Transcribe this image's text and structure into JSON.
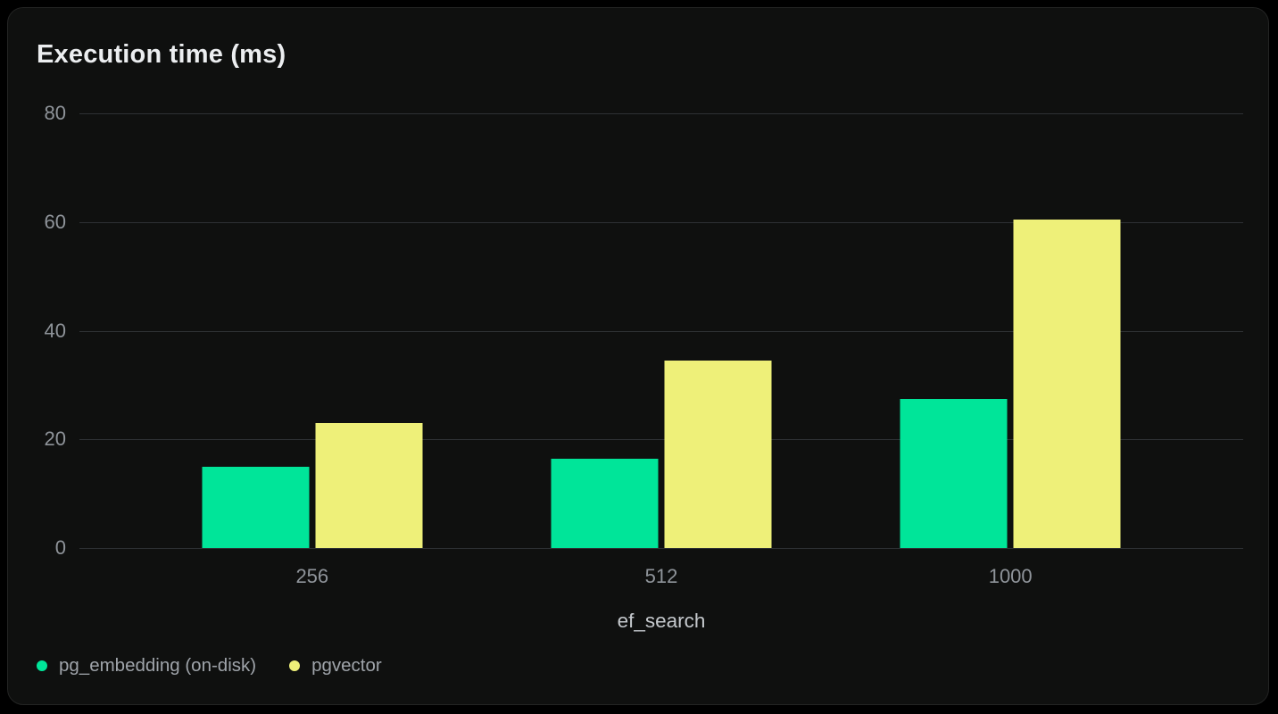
{
  "card": {
    "title": "Execution time (ms)"
  },
  "chart_data": {
    "type": "bar",
    "title": "Execution time (ms)",
    "categories": [
      "256",
      "512",
      "1000"
    ],
    "series": [
      {
        "name": "pg_embedding (on-disk)",
        "color": "#00e599",
        "values": [
          15,
          16.5,
          27.5
        ]
      },
      {
        "name": "pgvector",
        "color": "#eef079",
        "values": [
          23,
          34.5,
          60.5
        ]
      }
    ],
    "xlabel": "ef_search",
    "ylabel": "",
    "ylim": [
      0,
      80
    ],
    "yticks": [
      0,
      20,
      40,
      60,
      80
    ],
    "grid": true,
    "legend_position": "bottom-left",
    "group_centers_pct": [
      20,
      50,
      80
    ]
  },
  "colors": {
    "page_background": "#000000",
    "card_background": "#0f100f",
    "card_border": "#232423",
    "gridline": "#2e3134",
    "title_text": "#eceef0",
    "tick_text": "#8f949a",
    "axis_title_text": "#c5c9cd",
    "legend_text": "#9fa4aa"
  }
}
